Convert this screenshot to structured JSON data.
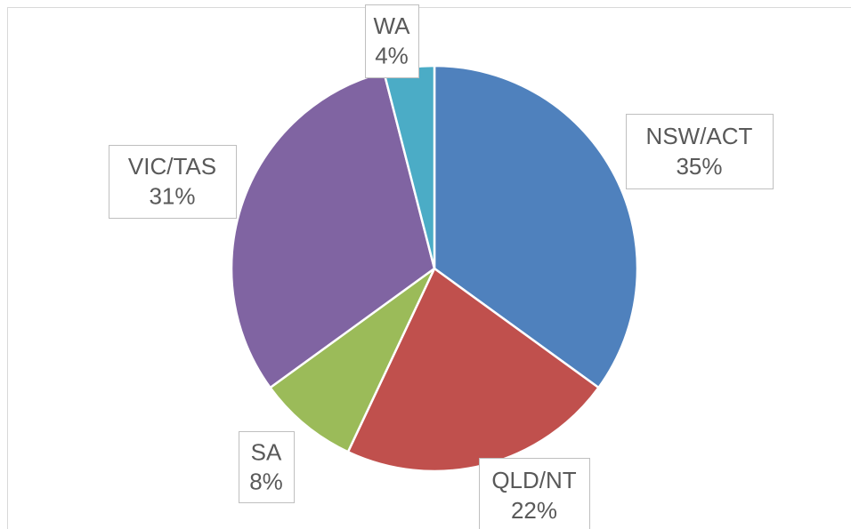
{
  "chart_data": {
    "type": "pie",
    "categories": [
      "NSW/ACT",
      "QLD/NT",
      "SA",
      "VIC/TAS",
      "WA"
    ],
    "values": [
      35,
      22,
      8,
      31,
      4
    ],
    "value_labels": [
      "35%",
      "22%",
      "8%",
      "31%",
      "4%"
    ],
    "colors": [
      "#4f81bd",
      "#c0504d",
      "#9bbb59",
      "#8064a2",
      "#4bacc6"
    ]
  }
}
